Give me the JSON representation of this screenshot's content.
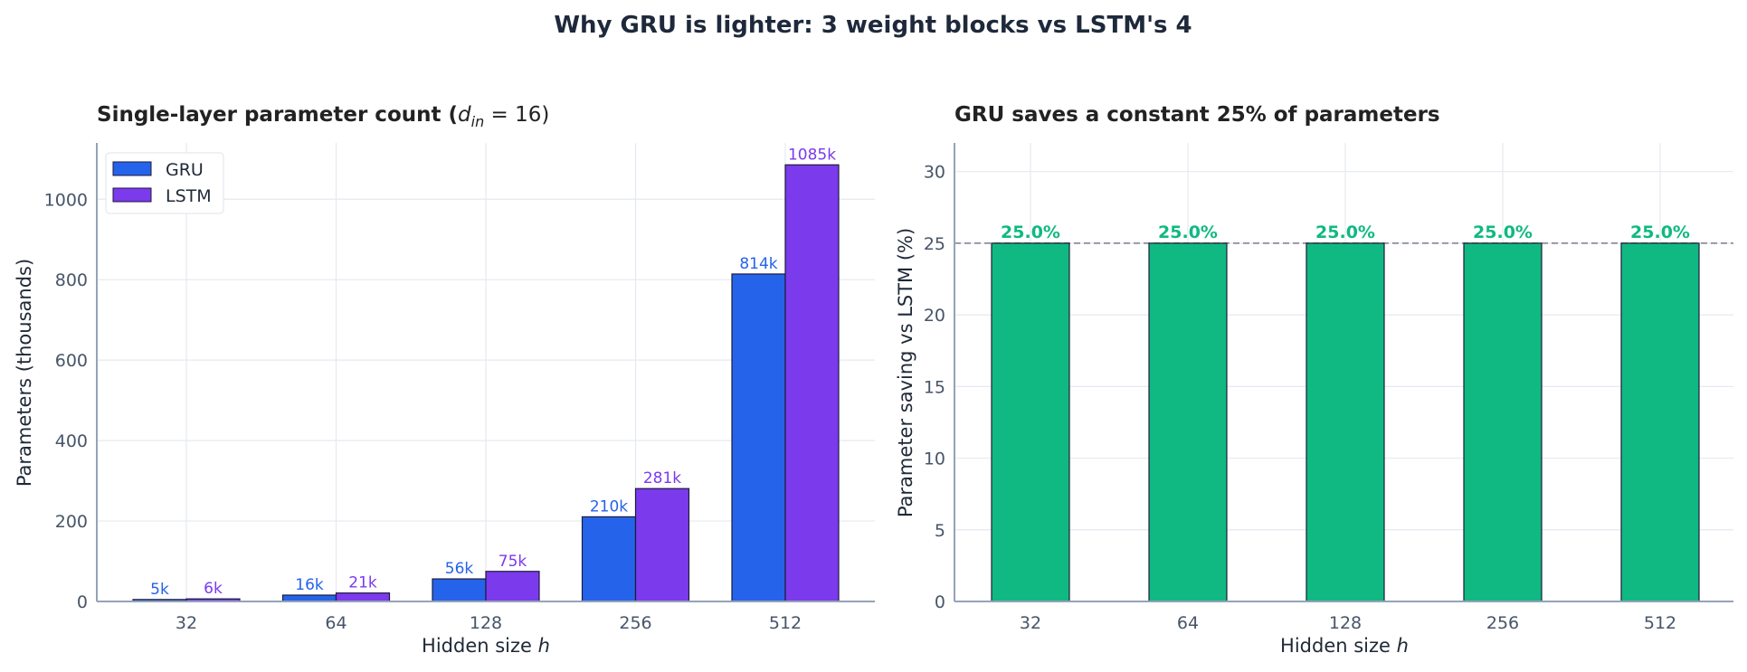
{
  "suptitle": "Why GRU is lighter: 3 weight blocks vs LSTM's 4",
  "chart_data": [
    {
      "type": "bar",
      "title": "Single-layer parameter count (d_in = 16)",
      "title_main": "Single-layer parameter count (",
      "title_math_var": "d",
      "title_math_sub": "in",
      "title_math_rest": " = 16)",
      "xlabel": "Hidden size ",
      "xlabel_var": "h",
      "ylabel": "Parameters (thousands)",
      "categories": [
        "32",
        "64",
        "128",
        "256",
        "512"
      ],
      "ylim": [
        0,
        1140
      ],
      "yticks": [
        0,
        200,
        400,
        600,
        800,
        1000
      ],
      "grid": true,
      "legend_placement": "top-left",
      "series": [
        {
          "name": "GRU",
          "color": "#2563eb",
          "values": [
            4.8,
            15.744,
            56.064,
            210.432,
            814.08
          ],
          "labels": [
            "5k",
            "16k",
            "56k",
            "210k",
            "814k"
          ]
        },
        {
          "name": "LSTM",
          "color": "#7c3aed",
          "values": [
            6.4,
            20.992,
            74.752,
            280.576,
            1085.44
          ],
          "labels": [
            "6k",
            "21k",
            "75k",
            "281k",
            "1085k"
          ]
        }
      ]
    },
    {
      "type": "bar",
      "title": "GRU saves a constant 25% of parameters",
      "xlabel": "Hidden size ",
      "xlabel_var": "h",
      "ylabel": "Parameter saving vs LSTM (%)",
      "categories": [
        "32",
        "64",
        "128",
        "256",
        "512"
      ],
      "ylim": [
        0,
        32
      ],
      "yticks": [
        0,
        5,
        10,
        15,
        20,
        25,
        30
      ],
      "grid": true,
      "reference_line": 25,
      "series": [
        {
          "color": "#10b981",
          "values": [
            25.0,
            25.0,
            25.0,
            25.0,
            25.0
          ],
          "labels": [
            "25.0%",
            "25.0%",
            "25.0%",
            "25.0%",
            "25.0%"
          ]
        }
      ]
    }
  ]
}
